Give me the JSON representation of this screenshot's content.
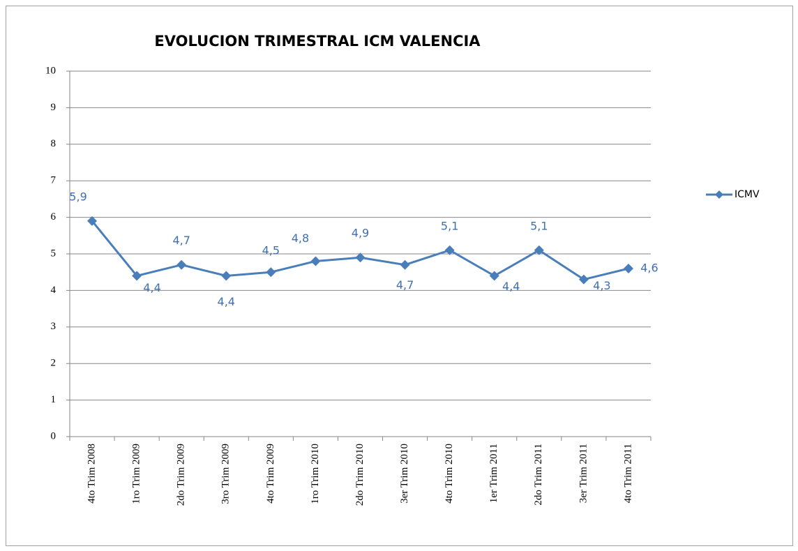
{
  "chart_data": {
    "type": "line",
    "title": "EVOLUCION TRIMESTRAL ICM VALENCIA",
    "categories": [
      "4to Trim 2008",
      "1ro Trim 2009",
      "2do Trim 2009",
      "3ro Trim 2009",
      "4to Trim 2009",
      "1ro Trim 2010",
      "2do Trim 2010",
      "3er Trim 2010",
      "4to Trim 2010",
      "1er Trim 2011",
      "2do Trim 2011",
      "3er Trim 2011",
      "4to Trim 2011"
    ],
    "series": [
      {
        "name": "ICMV",
        "color": "#4a7ebb",
        "values": [
          5.9,
          4.4,
          4.7,
          4.4,
          4.5,
          4.8,
          4.9,
          4.7,
          5.1,
          4.4,
          5.1,
          4.3,
          4.6
        ],
        "value_labels": [
          "5,9",
          "4,4",
          "4,7",
          "4,4",
          "4,5",
          "4,8",
          "4,9",
          "4,7",
          "5,1",
          "4,4",
          "5,1",
          "4,3",
          "4,6"
        ]
      }
    ],
    "ylim": [
      0,
      10
    ],
    "yticks": [
      0,
      1,
      2,
      3,
      4,
      5,
      6,
      7,
      8,
      9,
      10
    ],
    "grid": true,
    "legend": "right"
  }
}
